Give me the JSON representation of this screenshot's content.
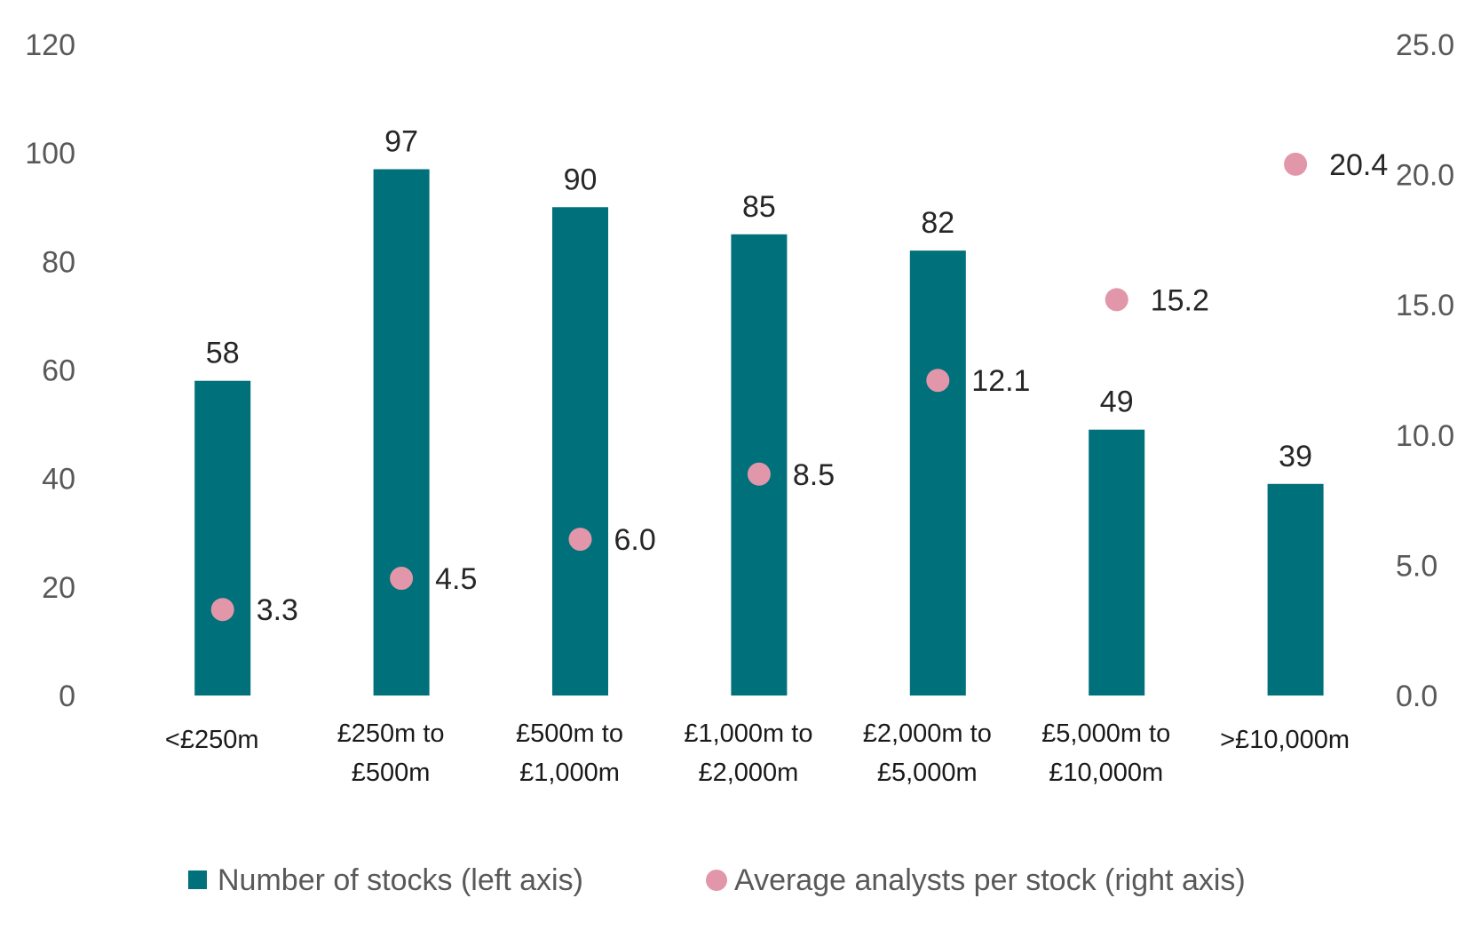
{
  "chart_data": {
    "type": "bar",
    "categories": [
      [
        "<£250m"
      ],
      [
        "£250m to",
        "£500m"
      ],
      [
        "£500m to",
        "£1,000m"
      ],
      [
        "£1,000m to",
        "£2,000m"
      ],
      [
        "£2,000m to",
        "£5,000m"
      ],
      [
        "£5,000m to",
        "£10,000m"
      ],
      [
        ">£10,000m"
      ]
    ],
    "series": [
      {
        "name": "Number of stocks (left axis)",
        "kind": "bar",
        "axis": "left",
        "color": "#00707A",
        "values": [
          58,
          97,
          90,
          85,
          82,
          49,
          39
        ],
        "labels": [
          "58",
          "97",
          "90",
          "85",
          "82",
          "49",
          "39"
        ]
      },
      {
        "name": "Average analysts per stock (right axis)",
        "kind": "scatter",
        "axis": "right",
        "color": "#E296A9",
        "values": [
          3.3,
          4.5,
          6.0,
          8.5,
          12.1,
          15.2,
          20.4
        ],
        "labels": [
          "3.3",
          "4.5",
          "6.0",
          "8.5",
          "12.1",
          "15.2",
          "20.4"
        ]
      }
    ],
    "left_axis": {
      "min": 0,
      "max": 120,
      "ticks": [
        "0",
        "20",
        "40",
        "60",
        "80",
        "100",
        "120"
      ]
    },
    "right_axis": {
      "min": 0,
      "max": 25,
      "ticks": [
        "0.0",
        "5.0",
        "10.0",
        "15.0",
        "20.0",
        "25.0"
      ]
    },
    "grid": false,
    "legend_position": "bottom"
  }
}
